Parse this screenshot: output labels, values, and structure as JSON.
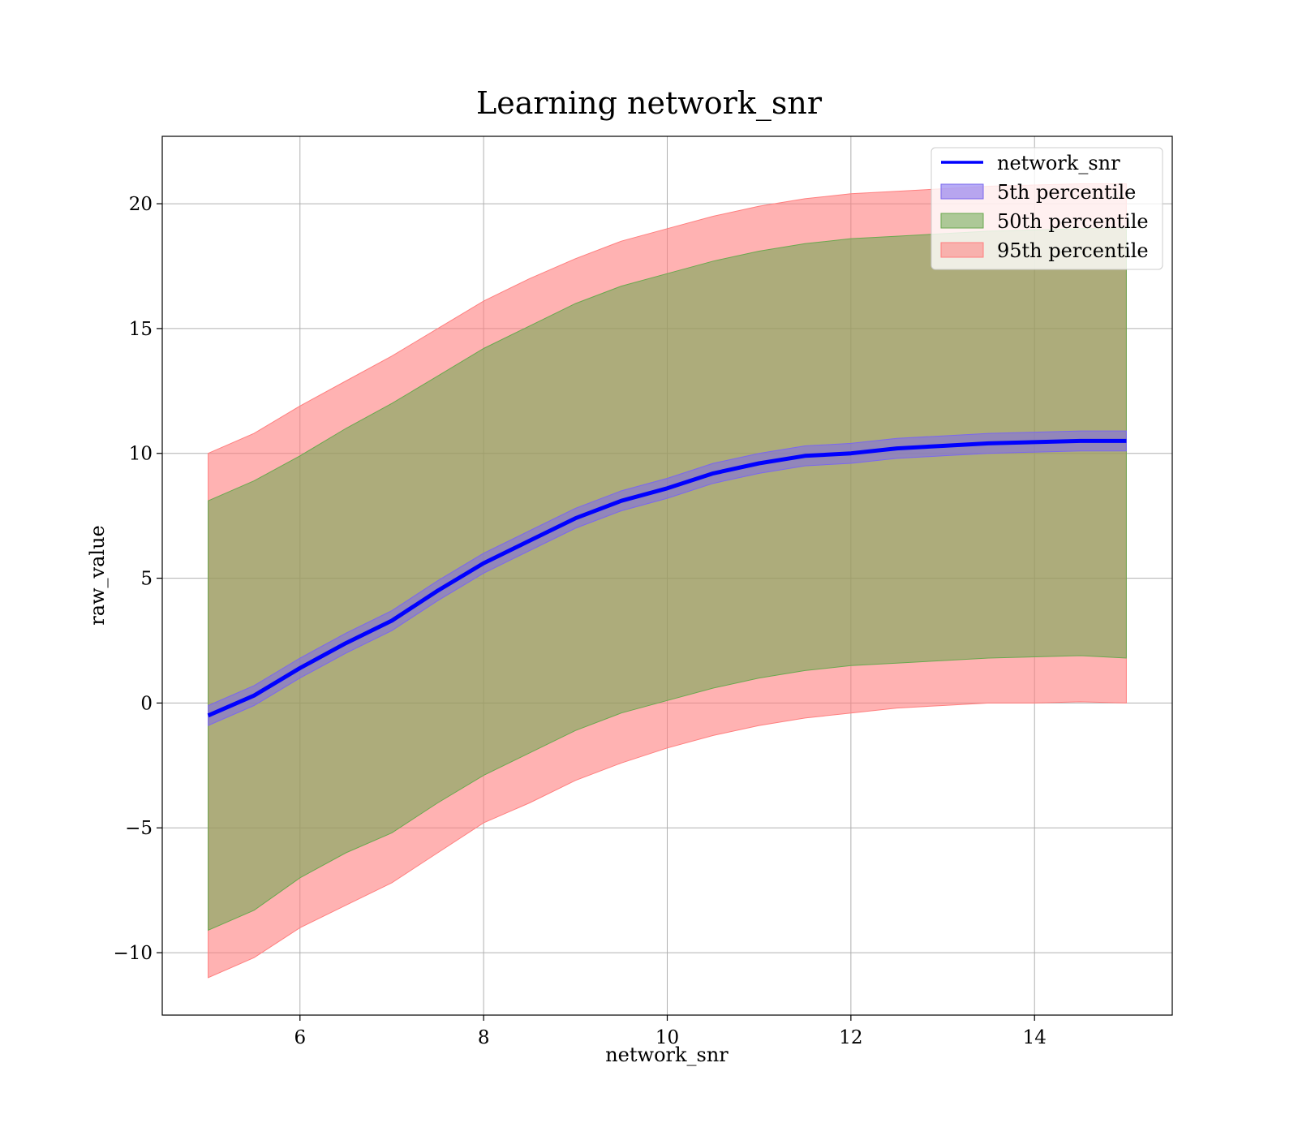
{
  "chart_data": {
    "type": "area",
    "title": "Learning network_snr",
    "xlabel": "network_snr",
    "ylabel": "raw_value",
    "xlim": [
      4.5,
      15.5
    ],
    "ylim": [
      -12.5,
      22.7
    ],
    "xticks": [
      6,
      8,
      10,
      12,
      14
    ],
    "yticks": [
      -10,
      -5,
      0,
      5,
      10,
      15,
      20
    ],
    "ytick_labels": [
      "−10",
      "−5",
      "0",
      "5",
      "10",
      "15",
      "20"
    ],
    "grid": true,
    "legend_position": "top-right",
    "x": [
      5,
      5.5,
      6,
      6.5,
      7,
      7.5,
      8,
      8.5,
      9,
      9.5,
      10,
      10.5,
      11,
      11.5,
      12,
      12.5,
      13,
      13.5,
      14,
      14.5,
      15
    ],
    "line": {
      "name": "network_snr",
      "color": "#0000ff",
      "values": [
        -0.5,
        0.3,
        1.4,
        2.4,
        3.3,
        4.5,
        5.6,
        6.5,
        7.4,
        8.1,
        8.6,
        9.2,
        9.6,
        9.9,
        10.0,
        10.2,
        10.3,
        10.4,
        10.45,
        10.5,
        10.5
      ]
    },
    "series": [
      {
        "name": "5th percentile",
        "color": "#7b68ee",
        "lower": [
          -0.9,
          -0.1,
          1.0,
          2.0,
          2.9,
          4.1,
          5.2,
          6.1,
          7.0,
          7.7,
          8.2,
          8.8,
          9.2,
          9.5,
          9.6,
          9.8,
          9.9,
          10.0,
          10.05,
          10.1,
          10.1
        ],
        "upper": [
          -0.1,
          0.7,
          1.8,
          2.8,
          3.7,
          4.9,
          6.0,
          6.9,
          7.8,
          8.5,
          9.0,
          9.6,
          10.0,
          10.3,
          10.4,
          10.6,
          10.7,
          10.8,
          10.85,
          10.9,
          10.9
        ]
      },
      {
        "name": "50th percentile",
        "color": "#6aa84f",
        "lower": [
          -9.1,
          -8.3,
          -7.0,
          -6.0,
          -5.2,
          -4.0,
          -2.9,
          -2.0,
          -1.1,
          -0.4,
          0.1,
          0.6,
          1.0,
          1.3,
          1.5,
          1.6,
          1.7,
          1.8,
          1.85,
          1.9,
          1.8
        ],
        "upper": [
          8.1,
          8.9,
          9.9,
          11.0,
          12.0,
          13.1,
          14.2,
          15.1,
          16.0,
          16.7,
          17.2,
          17.7,
          18.1,
          18.4,
          18.6,
          18.7,
          18.8,
          18.9,
          18.95,
          19.0,
          19.0
        ]
      },
      {
        "name": "95th percentile",
        "color": "#ff7f7f",
        "lower": [
          -11.0,
          -10.2,
          -9.0,
          -8.1,
          -7.2,
          -6.0,
          -4.8,
          -4.0,
          -3.1,
          -2.4,
          -1.8,
          -1.3,
          -0.9,
          -0.6,
          -0.4,
          -0.2,
          -0.1,
          0.0,
          0.0,
          0.05,
          0.0
        ],
        "upper": [
          10.0,
          10.8,
          11.9,
          12.9,
          13.9,
          15.0,
          16.1,
          17.0,
          17.8,
          18.5,
          19.0,
          19.5,
          19.9,
          20.2,
          20.4,
          20.5,
          20.6,
          20.7,
          20.75,
          20.8,
          20.8
        ]
      }
    ]
  }
}
